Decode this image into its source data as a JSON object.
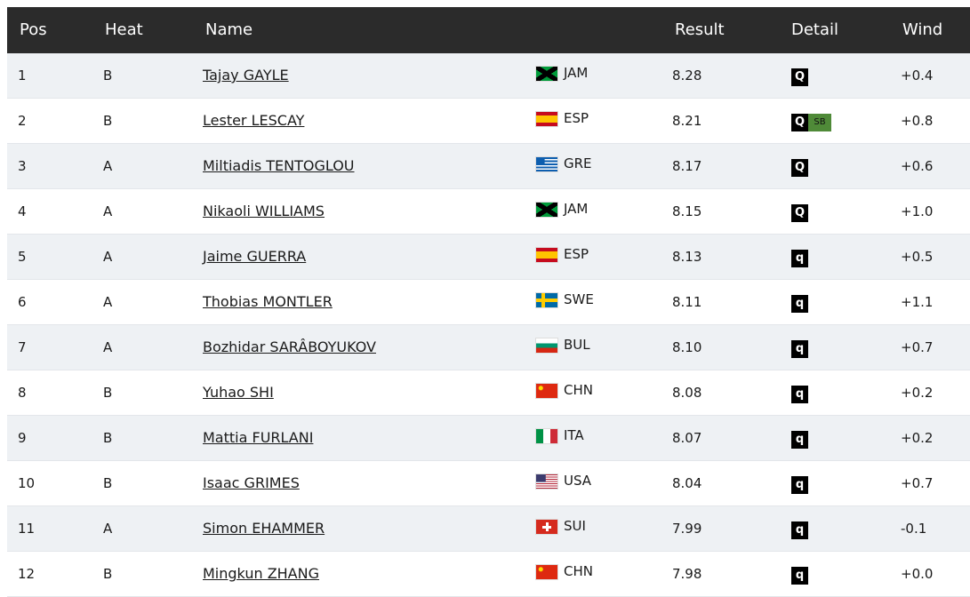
{
  "table": {
    "columns": [
      "Pos",
      "Heat",
      "Name",
      "Result",
      "Detail",
      "Wind"
    ],
    "rows": [
      {
        "pos": "1",
        "heat": "B",
        "name": "Tajay GAYLE",
        "country": "JAM",
        "result": "8.28",
        "detail": [
          "Q"
        ],
        "wind": "+0.4"
      },
      {
        "pos": "2",
        "heat": "B",
        "name": "Lester LESCAY",
        "country": "ESP",
        "result": "8.21",
        "detail": [
          "Q",
          "SB"
        ],
        "wind": "+0.8"
      },
      {
        "pos": "3",
        "heat": "A",
        "name": "Miltiadis TENTOGLOU",
        "country": "GRE",
        "result": "8.17",
        "detail": [
          "Q"
        ],
        "wind": "+0.6"
      },
      {
        "pos": "4",
        "heat": "A",
        "name": "Nikaoli WILLIAMS",
        "country": "JAM",
        "result": "8.15",
        "detail": [
          "Q"
        ],
        "wind": "+1.0"
      },
      {
        "pos": "5",
        "heat": "A",
        "name": "Jaime GUERRA",
        "country": "ESP",
        "result": "8.13",
        "detail": [
          "q"
        ],
        "wind": "+0.5"
      },
      {
        "pos": "6",
        "heat": "A",
        "name": "Thobias MONTLER",
        "country": "SWE",
        "result": "8.11",
        "detail": [
          "q"
        ],
        "wind": "+1.1"
      },
      {
        "pos": "7",
        "heat": "A",
        "name": "Bozhidar SARÂBOYUKOV",
        "country": "BUL",
        "result": "8.10",
        "detail": [
          "q"
        ],
        "wind": "+0.7"
      },
      {
        "pos": "8",
        "heat": "B",
        "name": "Yuhao SHI",
        "country": "CHN",
        "result": "8.08",
        "detail": [
          "q"
        ],
        "wind": "+0.2"
      },
      {
        "pos": "9",
        "heat": "B",
        "name": "Mattia FURLANI",
        "country": "ITA",
        "result": "8.07",
        "detail": [
          "q"
        ],
        "wind": "+0.2"
      },
      {
        "pos": "10",
        "heat": "B",
        "name": "Isaac GRIMES",
        "country": "USA",
        "result": "8.04",
        "detail": [
          "q"
        ],
        "wind": "+0.7"
      },
      {
        "pos": "11",
        "heat": "A",
        "name": "Simon EHAMMER",
        "country": "SUI",
        "result": "7.99",
        "detail": [
          "q"
        ],
        "wind": "-0.1"
      },
      {
        "pos": "12",
        "heat": "B",
        "name": "Mingkun ZHANG",
        "country": "CHN",
        "result": "7.98",
        "detail": [
          "q"
        ],
        "wind": "+0.0"
      }
    ]
  }
}
